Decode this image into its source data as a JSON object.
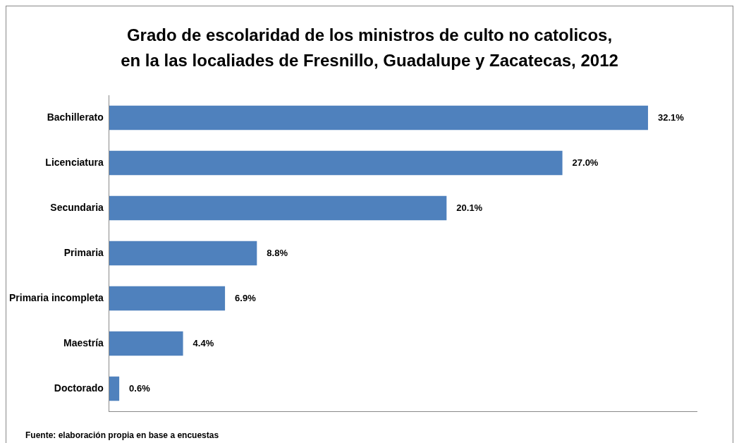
{
  "chart_data": {
    "type": "bar",
    "orientation": "horizontal",
    "title": "Grado de escolaridad de los ministros de culto no catolicos,\nen la las localiades de Fresnillo, Guadalupe y Zacatecas, 2012",
    "categories": [
      "Bachillerato",
      "Licenciatura",
      "Secundaria",
      "Primaria",
      "Primaria incompleta",
      "Maestría",
      "Doctorado"
    ],
    "values": [
      32.1,
      27.0,
      20.1,
      8.8,
      6.9,
      4.4,
      0.6
    ],
    "value_labels": [
      "32.1%",
      "27.0%",
      "20.1%",
      "8.8%",
      "6.9%",
      "4.4%",
      "0.6%"
    ],
    "color": "#4f81bd",
    "tick_labels": "y",
    "grid": false,
    "legend": false,
    "annotations": [
      "Fuente: elaboración propia en base a encuestas"
    ]
  }
}
